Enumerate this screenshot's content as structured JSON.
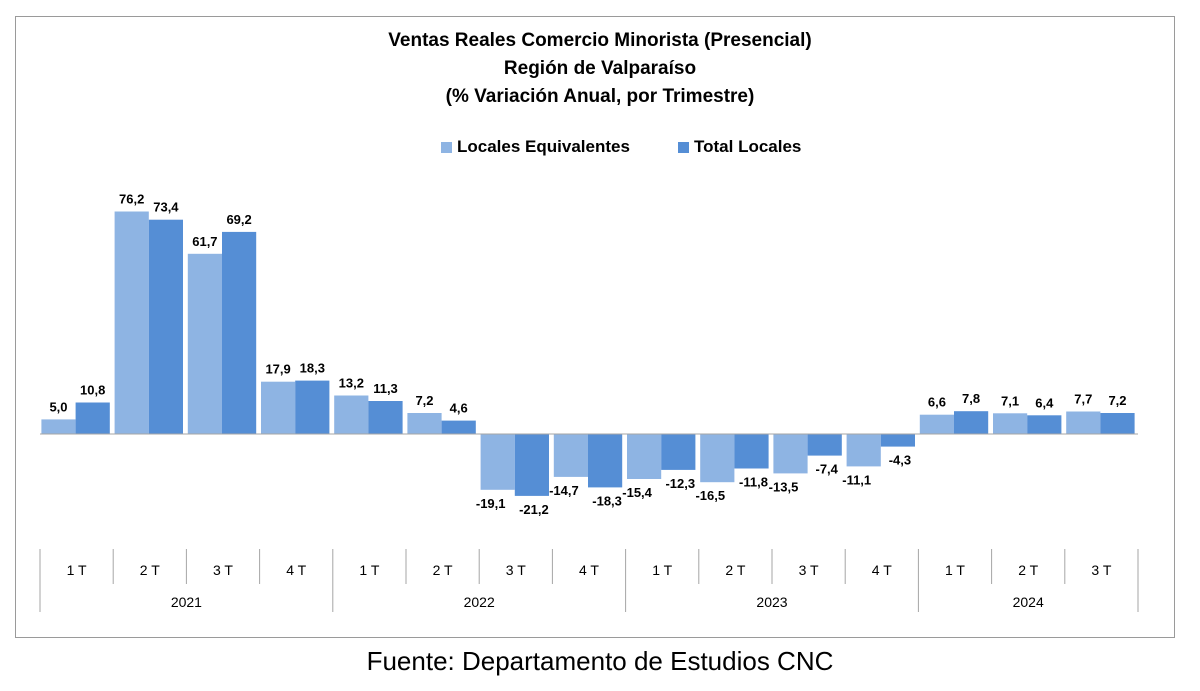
{
  "chart_data": {
    "type": "bar",
    "title": "Ventas Reales Comercio Minorista (Presencial)",
    "subtitle": "Región de Valparaíso",
    "subtitle2": "(% Variación Anual, por Trimestre)",
    "categories": [
      "1 T",
      "2 T",
      "3 T",
      "4 T",
      "1 T",
      "2 T",
      "3 T",
      "4 T",
      "1 T",
      "2 T",
      "3 T",
      "4 T",
      "1 T",
      "2 T",
      "3 T"
    ],
    "groups": [
      {
        "label": "2021",
        "count": 4
      },
      {
        "label": "2022",
        "count": 4
      },
      {
        "label": "2023",
        "count": 4
      },
      {
        "label": "2024",
        "count": 3
      }
    ],
    "series": [
      {
        "name": "Locales Equivalentes",
        "color": "#8EB4E3",
        "values": [
          5.0,
          76.2,
          61.7,
          17.9,
          13.2,
          7.2,
          -19.1,
          -14.7,
          -15.4,
          -16.5,
          -13.5,
          -11.1,
          6.6,
          7.1,
          7.7
        ],
        "labels": [
          "5,0",
          "76,2",
          "61,7",
          "17,9",
          "13,2",
          "7,2",
          "-19,1",
          "-14,7",
          "-15,4",
          "-16,5",
          "-13,5",
          "-11,1",
          "6,6",
          "7,1",
          "7,7"
        ]
      },
      {
        "name": "Total Locales",
        "color": "#558ED5",
        "values": [
          10.8,
          73.4,
          69.2,
          18.3,
          11.3,
          4.6,
          -21.2,
          -18.3,
          -12.3,
          -11.8,
          -7.4,
          -4.3,
          7.8,
          6.4,
          7.2
        ],
        "labels": [
          "10,8",
          "73,4",
          "69,2",
          "18,3",
          "11,3",
          "4,6",
          "-21,2",
          "-18,3",
          "-12,3",
          "-11,8",
          "-7,4",
          "-4,3",
          "7,8",
          "6,4",
          "7,2"
        ]
      }
    ],
    "legend_position": "top-center",
    "grid": false,
    "source": "Fuente: Departamento de Estudios CNC"
  }
}
